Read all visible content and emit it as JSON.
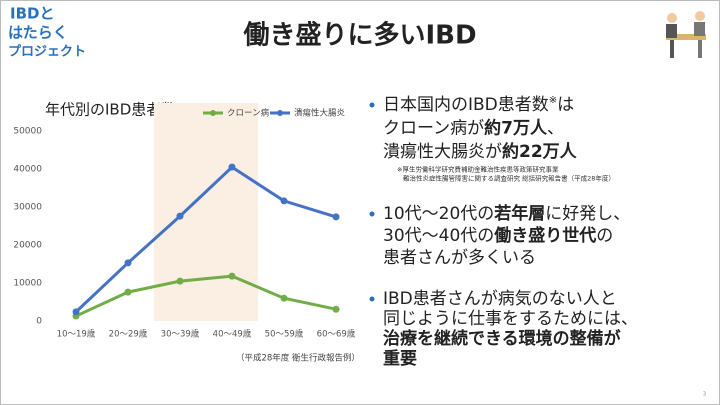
{
  "logo": {
    "lines": [
      "IBDと",
      "はたらく",
      "プロジェクト"
    ]
  },
  "slide_title": "働き盛りに多いIBD",
  "chart_data": {
    "type": "line",
    "title": "年代別のIBD患者数",
    "categories": [
      "10～19歳",
      "20～29歳",
      "30～39歳",
      "40～49歳",
      "50～59歳",
      "60～69歳"
    ],
    "series": [
      {
        "name": "クローン病",
        "color": "#70ad47",
        "values": [
          1300,
          7600,
          10500,
          11800,
          6000,
          3100
        ]
      },
      {
        "name": "潰瘍性大腸炎",
        "color": "#4472c4",
        "values": [
          2400,
          15300,
          27600,
          40500,
          31600,
          27400
        ]
      }
    ],
    "ylim": [
      0,
      50000
    ],
    "yticks": [
      0,
      10000,
      20000,
      30000,
      40000,
      50000
    ],
    "grid": false,
    "legend": "top",
    "highlight_categories": [
      2,
      3
    ],
    "highlight_color": "#fbeee3",
    "source": "（平成28年度 衛生行政報告例）"
  },
  "bullets": [
    {
      "lines": [
        [
          {
            "text": "日本国内のIBD患者数"
          },
          {
            "text": "※",
            "sup": true
          },
          {
            "text": "は"
          }
        ],
        [
          {
            "text": "クローン病が"
          },
          {
            "text": "約7万人",
            "bold": true
          },
          {
            "text": "、"
          }
        ],
        [
          {
            "text": "潰瘍性大腸炎が"
          },
          {
            "text": "約22万人",
            "bold": true
          }
        ]
      ],
      "note": [
        "※厚生労働科学研究費補助金難治性疾患等政策研究事業",
        "難治性炎症性腸管障害に関する調査研究 総括研究報告書（平成28年度）"
      ]
    },
    {
      "lines": [
        [
          {
            "text": "10代～20代の"
          },
          {
            "text": "若年層",
            "bold": true
          },
          {
            "text": "に好発し、"
          }
        ],
        [
          {
            "text": "30代～40代の"
          },
          {
            "text": "働き盛り世代",
            "bold": true
          },
          {
            "text": "の"
          }
        ],
        [
          {
            "text": "患者さんが多くいる"
          }
        ]
      ]
    },
    {
      "lines": [
        [
          {
            "text": "IBD患者さんが病気のない人と"
          }
        ],
        [
          {
            "text": "同じように仕事をするためには、"
          }
        ],
        [
          {
            "text": "治療を継続できる環境の整備が",
            "bold": true
          }
        ],
        [
          {
            "text": "重要",
            "bold": true
          }
        ]
      ]
    }
  ],
  "page_number": "3"
}
